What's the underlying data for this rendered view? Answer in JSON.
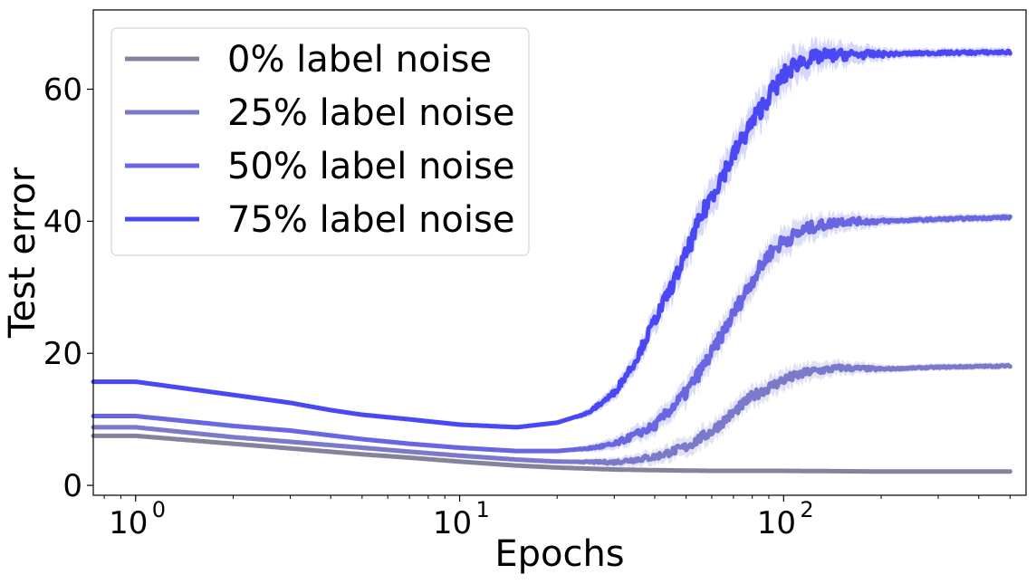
{
  "chart_data": {
    "type": "line",
    "title": "",
    "xlabel": "Epochs",
    "ylabel": "Test error",
    "xscale": "log",
    "xlim": [
      0.74,
      560
    ],
    "ylim": [
      -1.5,
      72
    ],
    "yticks": [
      0,
      20,
      40,
      60
    ],
    "xticks": [
      {
        "value": 1,
        "base": "10",
        "exp": "0"
      },
      {
        "value": 10,
        "base": "10",
        "exp": "1"
      },
      {
        "value": 100,
        "base": "10",
        "exp": "2"
      }
    ],
    "legend_position": "top-left",
    "grid": false,
    "series": [
      {
        "name": "0% label noise",
        "color": "#85839b",
        "x": [
          0.74,
          1,
          2,
          3,
          5,
          7,
          10,
          15,
          20,
          30,
          40,
          60,
          100,
          200,
          500
        ],
        "y": [
          7.5,
          7.5,
          6.3,
          5.6,
          4.7,
          4.2,
          3.6,
          3.0,
          2.7,
          2.4,
          2.3,
          2.2,
          2.2,
          2.1,
          2.1
        ]
      },
      {
        "name": "25% label noise",
        "color": "#7b79c9",
        "x": [
          0.74,
          1,
          2,
          3,
          5,
          7,
          10,
          15,
          20,
          30,
          40,
          50,
          60,
          70,
          80,
          100,
          120,
          150,
          200,
          300,
          500
        ],
        "y": [
          8.8,
          8.8,
          7.3,
          6.6,
          5.7,
          5.1,
          4.5,
          3.9,
          3.6,
          3.5,
          4.3,
          5.8,
          8.2,
          11.0,
          13.5,
          16.0,
          17.2,
          17.8,
          17.6,
          17.9,
          18.1
        ]
      },
      {
        "name": "50% label noise",
        "color": "#6866e0",
        "x": [
          0.74,
          1,
          2,
          3,
          5,
          7,
          10,
          15,
          20,
          25,
          30,
          40,
          50,
          60,
          70,
          80,
          90,
          100,
          120,
          150,
          200,
          300,
          500
        ],
        "y": [
          10.5,
          10.5,
          9.0,
          8.3,
          7.0,
          6.3,
          5.7,
          5.2,
          5.2,
          5.6,
          6.2,
          9.0,
          14.0,
          20.0,
          26.0,
          31.0,
          35.0,
          37.0,
          39.0,
          40.0,
          40.0,
          40.3,
          40.6
        ]
      },
      {
        "name": "75% label noise",
        "color": "#4a48f5",
        "x": [
          0.74,
          1,
          2,
          3,
          4,
          5,
          7,
          10,
          15,
          20,
          25,
          30,
          35,
          40,
          45,
          50,
          55,
          60,
          70,
          80,
          90,
          100,
          110,
          130,
          150,
          200,
          300,
          500
        ],
        "y": [
          15.7,
          15.7,
          13.7,
          12.5,
          11.4,
          10.7,
          10.0,
          9.2,
          8.8,
          9.5,
          11.0,
          14.0,
          19.0,
          25.0,
          30.0,
          35.0,
          40.0,
          44.0,
          50.0,
          55.0,
          59.0,
          62.0,
          64.0,
          65.0,
          65.2,
          65.3,
          65.5,
          65.6
        ]
      }
    ]
  }
}
